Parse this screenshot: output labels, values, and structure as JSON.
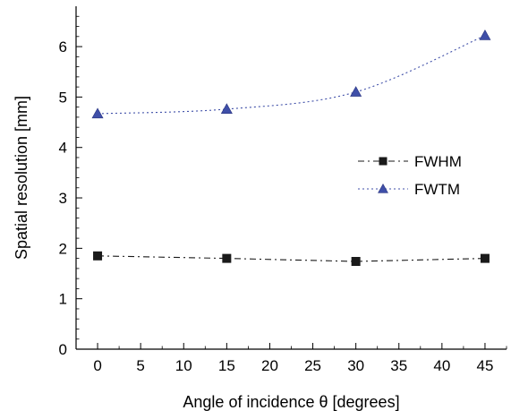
{
  "chart_data": {
    "type": "line",
    "title": "",
    "xlabel": "Angle of incidence θ  [degrees]",
    "ylabel": "Spatial resolution [mm]",
    "xlim": [
      -2.5,
      47.5
    ],
    "ylim": [
      0,
      6.8
    ],
    "x_ticks": [
      0,
      5,
      10,
      15,
      20,
      25,
      30,
      35,
      40,
      45
    ],
    "y_ticks": [
      0,
      1,
      2,
      3,
      4,
      5,
      6
    ],
    "legend_position": "right",
    "series": [
      {
        "name": "FWHM",
        "marker": "square",
        "line_style": "dash-dot",
        "color": "#1a1a1a",
        "x": [
          0,
          15,
          30,
          45
        ],
        "y": [
          1.85,
          1.8,
          1.74,
          1.8
        ]
      },
      {
        "name": "FWTM",
        "marker": "triangle",
        "line_style": "dotted",
        "color": "#3f4fa8",
        "x": [
          0,
          15,
          30,
          45
        ],
        "y": [
          4.67,
          4.76,
          5.1,
          6.22
        ]
      }
    ]
  }
}
